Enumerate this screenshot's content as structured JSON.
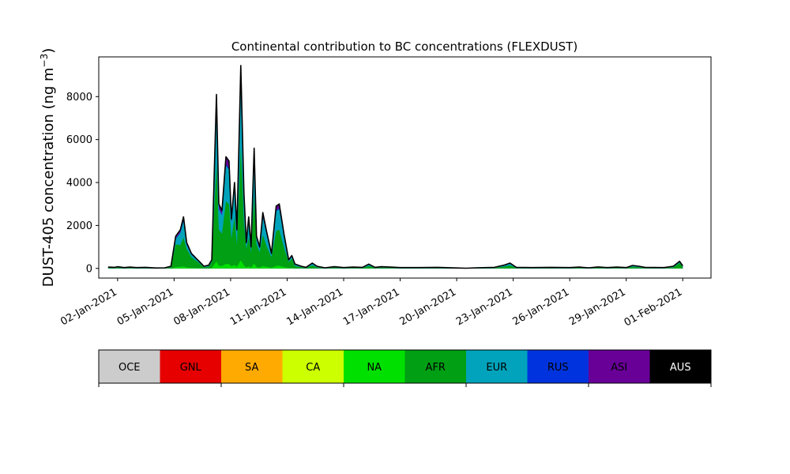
{
  "chart_data": {
    "type": "area",
    "stacked": true,
    "title": "Continental contribution to BC concentrations (FLEXDUST)",
    "ylabel": "DUST-405 concentration (ng m⁻³)",
    "ylabel_main": "DUST-405 concentration (ng m",
    "ylabel_exp": "−3",
    "ylabel_close": ")",
    "xlabel": "",
    "xlim": [
      "2021-01-01T00:00",
      "2021-02-02T12:00"
    ],
    "ylim": [
      -450,
      9850
    ],
    "yticks": [
      0,
      2000,
      4000,
      6000,
      8000
    ],
    "ytick_labels": [
      "0",
      "2000",
      "4000",
      "6000",
      "8000"
    ],
    "xticks": [
      "2021-01-02",
      "2021-01-05",
      "2021-01-08",
      "2021-01-11",
      "2021-01-14",
      "2021-01-17",
      "2021-01-20",
      "2021-01-23",
      "2021-01-26",
      "2021-01-29",
      "2021-02-01"
    ],
    "xtick_labels": [
      "02-Jan-2021",
      "05-Jan-2021",
      "08-Jan-2021",
      "11-Jan-2021",
      "14-Jan-2021",
      "17-Jan-2021",
      "20-Jan-2021",
      "23-Jan-2021",
      "26-Jan-2021",
      "29-Jan-2021",
      "01-Feb-2021"
    ],
    "series_order": [
      "OCE",
      "GNL",
      "SA",
      "CA",
      "NA",
      "AFR",
      "EUR",
      "RUS",
      "ASI",
      "AUS"
    ],
    "colors": {
      "OCE": "#cccccc",
      "GNL": "#e60000",
      "SA": "#ffaa00",
      "CA": "#ccff00",
      "NA": "#00e000",
      "AFR": "#009f14",
      "EUR": "#00a3bb",
      "RUS": "#0033dd",
      "ASI": "#680098",
      "AUS": "#000000"
    },
    "legend": {
      "placement": "bottom colorbar",
      "labels": [
        "OCE",
        "GNL",
        "SA",
        "CA",
        "NA",
        "AFR",
        "EUR",
        "RUS",
        "ASI",
        "AUS"
      ],
      "label_colors": [
        "#000000",
        "#000000",
        "#000000",
        "#000000",
        "#000000",
        "#000000",
        "#000000",
        "#000000",
        "#000000",
        "#ffffff"
      ]
    },
    "total_points": [
      [
        "2021-01-01T12:00",
        60
      ],
      [
        "2021-01-01T20:00",
        50
      ],
      [
        "2021-01-02T00:00",
        80
      ],
      [
        "2021-01-02T08:00",
        40
      ],
      [
        "2021-01-02T16:00",
        60
      ],
      [
        "2021-01-03T00:00",
        40
      ],
      [
        "2021-01-03T12:00",
        50
      ],
      [
        "2021-01-04T00:00",
        20
      ],
      [
        "2021-01-04T12:00",
        30
      ],
      [
        "2021-01-04T20:00",
        100
      ],
      [
        "2021-01-05T02:00",
        1500
      ],
      [
        "2021-01-05T08:00",
        1800
      ],
      [
        "2021-01-05T12:00",
        2400
      ],
      [
        "2021-01-05T16:00",
        1200
      ],
      [
        "2021-01-05T22:00",
        700
      ],
      [
        "2021-01-06T06:00",
        400
      ],
      [
        "2021-01-06T14:00",
        100
      ],
      [
        "2021-01-06T20:00",
        150
      ],
      [
        "2021-01-07T00:00",
        400
      ],
      [
        "2021-01-07T06:00",
        8100
      ],
      [
        "2021-01-07T09:00",
        3000
      ],
      [
        "2021-01-07T13:00",
        2700
      ],
      [
        "2021-01-07T18:00",
        5200
      ],
      [
        "2021-01-07T22:00",
        5000
      ],
      [
        "2021-01-08T01:00",
        2300
      ],
      [
        "2021-01-08T05:00",
        4000
      ],
      [
        "2021-01-08T08:00",
        1800
      ],
      [
        "2021-01-08T13:00",
        9450
      ],
      [
        "2021-01-08T17:00",
        3500
      ],
      [
        "2021-01-08T20:00",
        1200
      ],
      [
        "2021-01-08T23:00",
        2400
      ],
      [
        "2021-01-09T02:00",
        1000
      ],
      [
        "2021-01-09T06:00",
        5600
      ],
      [
        "2021-01-09T09:00",
        1500
      ],
      [
        "2021-01-09T13:00",
        1000
      ],
      [
        "2021-01-09T17:00",
        2600
      ],
      [
        "2021-01-09T22:00",
        1700
      ],
      [
        "2021-01-10T04:00",
        700
      ],
      [
        "2021-01-10T10:00",
        2900
      ],
      [
        "2021-01-10T14:00",
        3000
      ],
      [
        "2021-01-10T20:00",
        1600
      ],
      [
        "2021-01-11T02:00",
        400
      ],
      [
        "2021-01-11T06:00",
        600
      ],
      [
        "2021-01-11T10:00",
        200
      ],
      [
        "2021-01-11T18:00",
        100
      ],
      [
        "2021-01-12T00:00",
        50
      ],
      [
        "2021-01-12T08:00",
        250
      ],
      [
        "2021-01-12T14:00",
        100
      ],
      [
        "2021-01-13T00:00",
        30
      ],
      [
        "2021-01-13T12:00",
        80
      ],
      [
        "2021-01-14T00:00",
        40
      ],
      [
        "2021-01-14T12:00",
        60
      ],
      [
        "2021-01-15T00:00",
        50
      ],
      [
        "2021-01-15T08:00",
        200
      ],
      [
        "2021-01-15T16:00",
        50
      ],
      [
        "2021-01-16T00:00",
        80
      ],
      [
        "2021-01-16T12:00",
        60
      ],
      [
        "2021-01-17T00:00",
        40
      ],
      [
        "2021-01-18T00:00",
        40
      ],
      [
        "2021-01-19T00:00",
        50
      ],
      [
        "2021-01-20T00:00",
        20
      ],
      [
        "2021-01-20T12:00",
        10
      ],
      [
        "2021-01-21T00:00",
        30
      ],
      [
        "2021-01-22T00:00",
        50
      ],
      [
        "2021-01-22T12:00",
        150
      ],
      [
        "2021-01-22T20:00",
        250
      ],
      [
        "2021-01-23T04:00",
        50
      ],
      [
        "2021-01-24T00:00",
        40
      ],
      [
        "2021-01-25T00:00",
        50
      ],
      [
        "2021-01-26T00:00",
        40
      ],
      [
        "2021-01-26T12:00",
        60
      ],
      [
        "2021-01-27T00:00",
        30
      ],
      [
        "2021-01-27T12:00",
        70
      ],
      [
        "2021-01-28T00:00",
        40
      ],
      [
        "2021-01-28T12:00",
        60
      ],
      [
        "2021-01-29T00:00",
        40
      ],
      [
        "2021-01-29T08:00",
        140
      ],
      [
        "2021-01-29T16:00",
        100
      ],
      [
        "2021-01-30T00:00",
        50
      ],
      [
        "2021-01-31T00:00",
        40
      ],
      [
        "2021-01-31T12:00",
        100
      ],
      [
        "2021-01-31T20:00",
        330
      ],
      [
        "2021-02-01T00:00",
        120
      ]
    ],
    "stack_fractions": {
      "segments": [
        "OCE",
        "GNL",
        "SA",
        "CA",
        "NA",
        "AFR",
        "EUR",
        "RUS",
        "ASI"
      ],
      "note_visible_pattern": "AFR (green) dominates peaks; ASI (purple) forms upper band of the major peaks; EUR (cyan) visible at low levels late in January"
    }
  }
}
